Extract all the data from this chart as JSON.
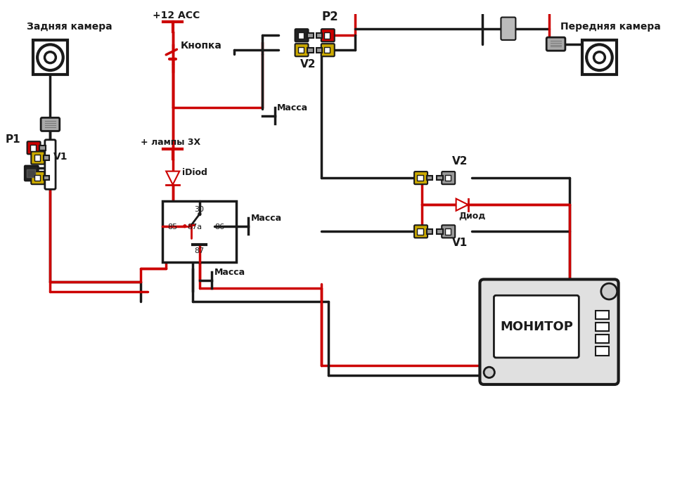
{
  "bg_color": "#ffffff",
  "BK": "#1a1a1a",
  "RD": "#cc0000",
  "YL": "#ccaa00",
  "GY": "#999999",
  "wire_lw": 2.5,
  "labels": {
    "rear_camera": "Задняя камера",
    "front_camera": "Передняя камера",
    "acc": "+12 ACC",
    "button": "Кнопка",
    "lamp": "+ лампы 3X",
    "idiod": "iDiod",
    "massa1": "Масса",
    "massa2": "Масса",
    "massa3": "Масса",
    "diod": "Диод",
    "P1": "P1",
    "P2": "P2",
    "V1_left": "V1",
    "V1_right": "V1",
    "V2_top": "V2",
    "V2_right": "V2",
    "monitor": "МОНИТОР",
    "relay_30": "30",
    "relay_85": "85",
    "relay_86": "86",
    "relay_87a": "87a",
    "relay_87": "87"
  }
}
